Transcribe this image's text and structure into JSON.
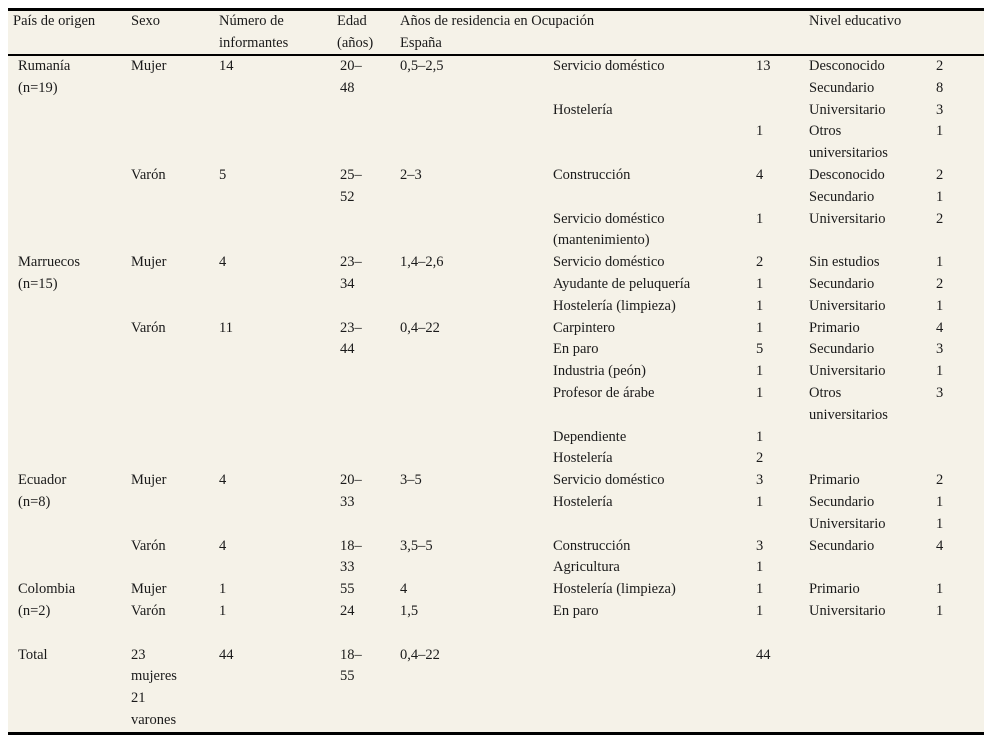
{
  "colors": {
    "table_background": "#f5f2e8",
    "text": "#1a1a1a",
    "rule": "#000000"
  },
  "table": {
    "header": {
      "line1": [
        "País de origen",
        "Sexo",
        "Número de",
        "Edad",
        "Años de residencia en",
        "Ocupación",
        "",
        "Nivel educativo",
        ""
      ],
      "line2": [
        "",
        "",
        "informantes",
        "(años)",
        "España",
        "",
        "",
        "",
        ""
      ]
    },
    "rows": [
      [
        "Rumanía",
        "Mujer",
        "14",
        "20–",
        "0,5–2,5",
        "Servicio doméstico",
        "13",
        "Desconocido",
        "2"
      ],
      [
        "(n=19)",
        "",
        "",
        "48",
        "",
        "",
        "",
        "Secundario",
        "8"
      ],
      [
        "",
        "",
        "",
        "",
        "",
        "Hostelería",
        "",
        "Universitario",
        "3"
      ],
      [
        "",
        "",
        "",
        "",
        "",
        "",
        "1",
        "Otros",
        "1"
      ],
      [
        "",
        "",
        "",
        "",
        "",
        "",
        "",
        "universitarios",
        ""
      ],
      [
        "",
        "Varón",
        "5",
        "25–",
        "2–3",
        "Construcción",
        "4",
        "Desconocido",
        "2"
      ],
      [
        "",
        "",
        "",
        "52",
        "",
        "",
        "",
        "Secundario",
        "1"
      ],
      [
        "",
        "",
        "",
        "",
        "",
        "Servicio doméstico",
        "1",
        "Universitario",
        "2"
      ],
      [
        "",
        "",
        "",
        "",
        "",
        "(mantenimiento)",
        "",
        "",
        ""
      ],
      [
        "Marruecos",
        "Mujer",
        "4",
        "23–",
        "1,4–2,6",
        "Servicio doméstico",
        "2",
        "Sin estudios",
        "1"
      ],
      [
        "(n=15)",
        "",
        "",
        "34",
        "",
        "Ayudante de peluquería",
        "1",
        "Secundario",
        "2"
      ],
      [
        "",
        "",
        "",
        "",
        "",
        "Hostelería (limpieza)",
        "1",
        "Universitario",
        "1"
      ],
      [
        "",
        "Varón",
        "11",
        "23–",
        "0,4–22",
        "Carpintero",
        "1",
        "Primario",
        "4"
      ],
      [
        "",
        "",
        "",
        "44",
        "",
        "En paro",
        "5",
        "Secundario",
        "3"
      ],
      [
        "",
        "",
        "",
        "",
        "",
        "Industria (peón)",
        "1",
        "Universitario",
        "1"
      ],
      [
        "",
        "",
        "",
        "",
        "",
        "Profesor de árabe",
        "1",
        "Otros",
        "3"
      ],
      [
        "",
        "",
        "",
        "",
        "",
        "",
        "",
        "universitarios",
        ""
      ],
      [
        "",
        "",
        "",
        "",
        "",
        "Dependiente",
        "1",
        "",
        ""
      ],
      [
        "",
        "",
        "",
        "",
        "",
        "Hostelería",
        "2",
        "",
        ""
      ],
      [
        "Ecuador",
        "Mujer",
        "4",
        "20–",
        "3–5",
        "Servicio doméstico",
        "3",
        "Primario",
        "2"
      ],
      [
        "(n=8)",
        "",
        "",
        "33",
        "",
        "Hostelería",
        "1",
        "Secundario",
        "1"
      ],
      [
        "",
        "",
        "",
        "",
        "",
        "",
        "",
        "Universitario",
        "1"
      ],
      [
        "",
        "Varón",
        "4",
        "18–",
        "3,5–5",
        "Construcción",
        "3",
        "Secundario",
        "4"
      ],
      [
        "",
        "",
        "",
        "33",
        "",
        "Agricultura",
        "1",
        "",
        ""
      ],
      [
        "Colombia",
        "Mujer",
        "1",
        "55",
        "4",
        "Hostelería (limpieza)",
        "1",
        "Primario",
        "1"
      ],
      [
        "(n=2)",
        "Varón",
        "1",
        "24",
        "1,5",
        "En paro",
        "1",
        "Universitario",
        "1"
      ],
      [
        "",
        "",
        "",
        "",
        "",
        "",
        "",
        "",
        ""
      ],
      [
        "Total",
        "23",
        "44",
        "18–",
        "0,4–22",
        "",
        "44",
        "",
        ""
      ],
      [
        "",
        "mujeres",
        "",
        "55",
        "",
        "",
        "",
        "",
        ""
      ],
      [
        "",
        "21",
        "",
        "",
        "",
        "",
        "",
        "",
        ""
      ],
      [
        "",
        "varones",
        "",
        "",
        "",
        "",
        "",
        "",
        ""
      ]
    ]
  }
}
